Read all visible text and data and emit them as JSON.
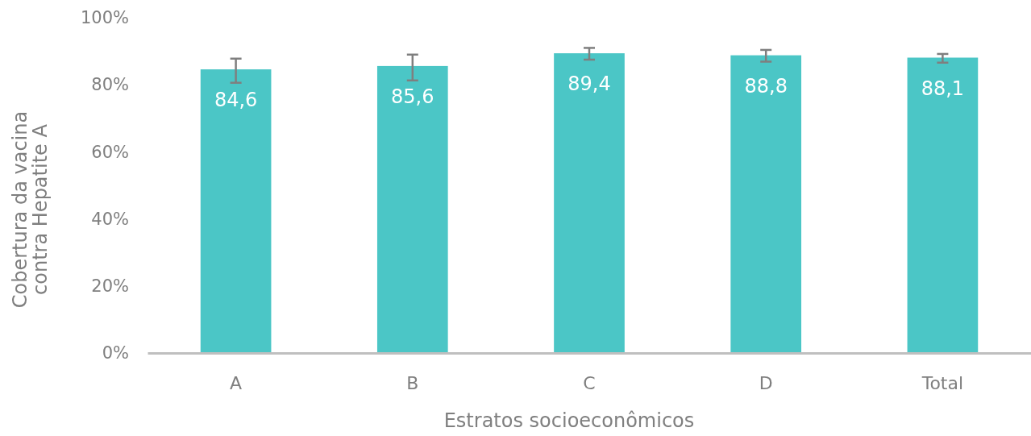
{
  "chart_data": {
    "type": "bar",
    "xlabel": "Estratos socioeconômicos",
    "ylabel": "Cobertura da vacina\ncontra Hepatite A",
    "categories": [
      "A",
      "B",
      "C",
      "D",
      "Total"
    ],
    "values": [
      84.6,
      85.6,
      89.4,
      88.8,
      88.1
    ],
    "value_labels": [
      "84,6",
      "85,6",
      "89,4",
      "88,8",
      "88,1"
    ],
    "errors": [
      [
        80.6,
        87.8
      ],
      [
        81.3,
        89.0
      ],
      [
        87.5,
        91.0
      ],
      [
        86.9,
        90.4
      ],
      [
        86.6,
        89.2
      ]
    ],
    "color": "#4bc6c6",
    "ylim": [
      0,
      100
    ],
    "yticks": [
      {
        "value": 0,
        "label": "0%"
      },
      {
        "value": 20,
        "label": "20%"
      },
      {
        "value": 40,
        "label": "40%"
      },
      {
        "value": 60,
        "label": "60%"
      },
      {
        "value": 80,
        "label": "80%"
      },
      {
        "value": 100,
        "label": "100%"
      }
    ],
    "grid": false
  }
}
